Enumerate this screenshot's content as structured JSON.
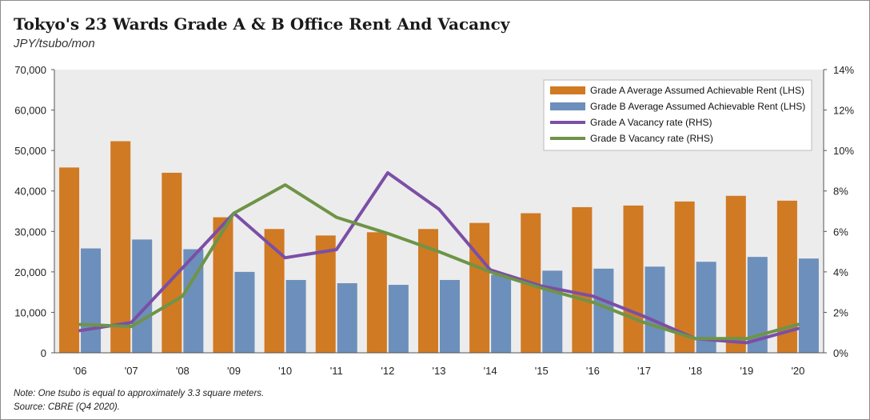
{
  "header": {
    "title": "Tokyo's 23 Wards Grade A & B Office Rent And Vacancy",
    "unit": "JPY/tsubo/mon"
  },
  "footer": {
    "note": "Note: One tsubo is equal to approximately 3.3 square meters.",
    "source": "Source: CBRE (Q4 2020)."
  },
  "colors": {
    "gradeA_bar": "#d07a23",
    "gradeB_bar": "#6d8fbb",
    "gradeA_line": "#7b4fa6",
    "gradeB_line": "#6e9447",
    "plot_bg": "#ececec"
  },
  "chart_data": {
    "type": "bar",
    "categories": [
      "'06",
      "'07",
      "'08",
      "'09",
      "'10",
      "'11",
      "'12",
      "'13",
      "'14",
      "'15",
      "'16",
      "'17",
      "'18",
      "'19",
      "'20"
    ],
    "left_axis": {
      "ylim": [
        0,
        70000
      ],
      "ticks": [
        "0",
        "10,000",
        "20,000",
        "30,000",
        "40,000",
        "50,000",
        "60,000",
        "70,000"
      ]
    },
    "right_axis": {
      "ylim": [
        0,
        14
      ],
      "ticks": [
        "0%",
        "2%",
        "4%",
        "6%",
        "8%",
        "10%",
        "12%",
        "14%"
      ]
    },
    "series": [
      {
        "name": "Grade A Average Assumed Achievable Rent (LHS)",
        "type": "bar",
        "axis": "left",
        "values": [
          45800,
          52300,
          44500,
          33500,
          30600,
          29000,
          29800,
          30600,
          32100,
          34500,
          36000,
          36400,
          37400,
          38800,
          37600
        ]
      },
      {
        "name": "Grade B Average Assumed Achievable Rent (LHS)",
        "type": "bar",
        "axis": "left",
        "values": [
          25800,
          28000,
          25600,
          20000,
          18000,
          17200,
          16800,
          18000,
          19300,
          20300,
          20800,
          21300,
          22500,
          23700,
          23300
        ]
      },
      {
        "name": "Grade A Vacancy rate (RHS)",
        "type": "line",
        "axis": "right",
        "values": [
          1.1,
          1.5,
          4.2,
          6.9,
          4.7,
          5.1,
          8.9,
          7.1,
          4.1,
          3.3,
          2.8,
          1.8,
          0.7,
          0.5,
          1.2
        ]
      },
      {
        "name": "Grade B Vacancy rate (RHS)",
        "type": "line",
        "axis": "right",
        "values": [
          1.4,
          1.3,
          2.8,
          6.9,
          8.3,
          6.7,
          5.9,
          5.0,
          4.0,
          3.2,
          2.5,
          1.5,
          0.7,
          0.7,
          1.4
        ]
      }
    ],
    "legend_position": "top-right",
    "grid": false
  }
}
